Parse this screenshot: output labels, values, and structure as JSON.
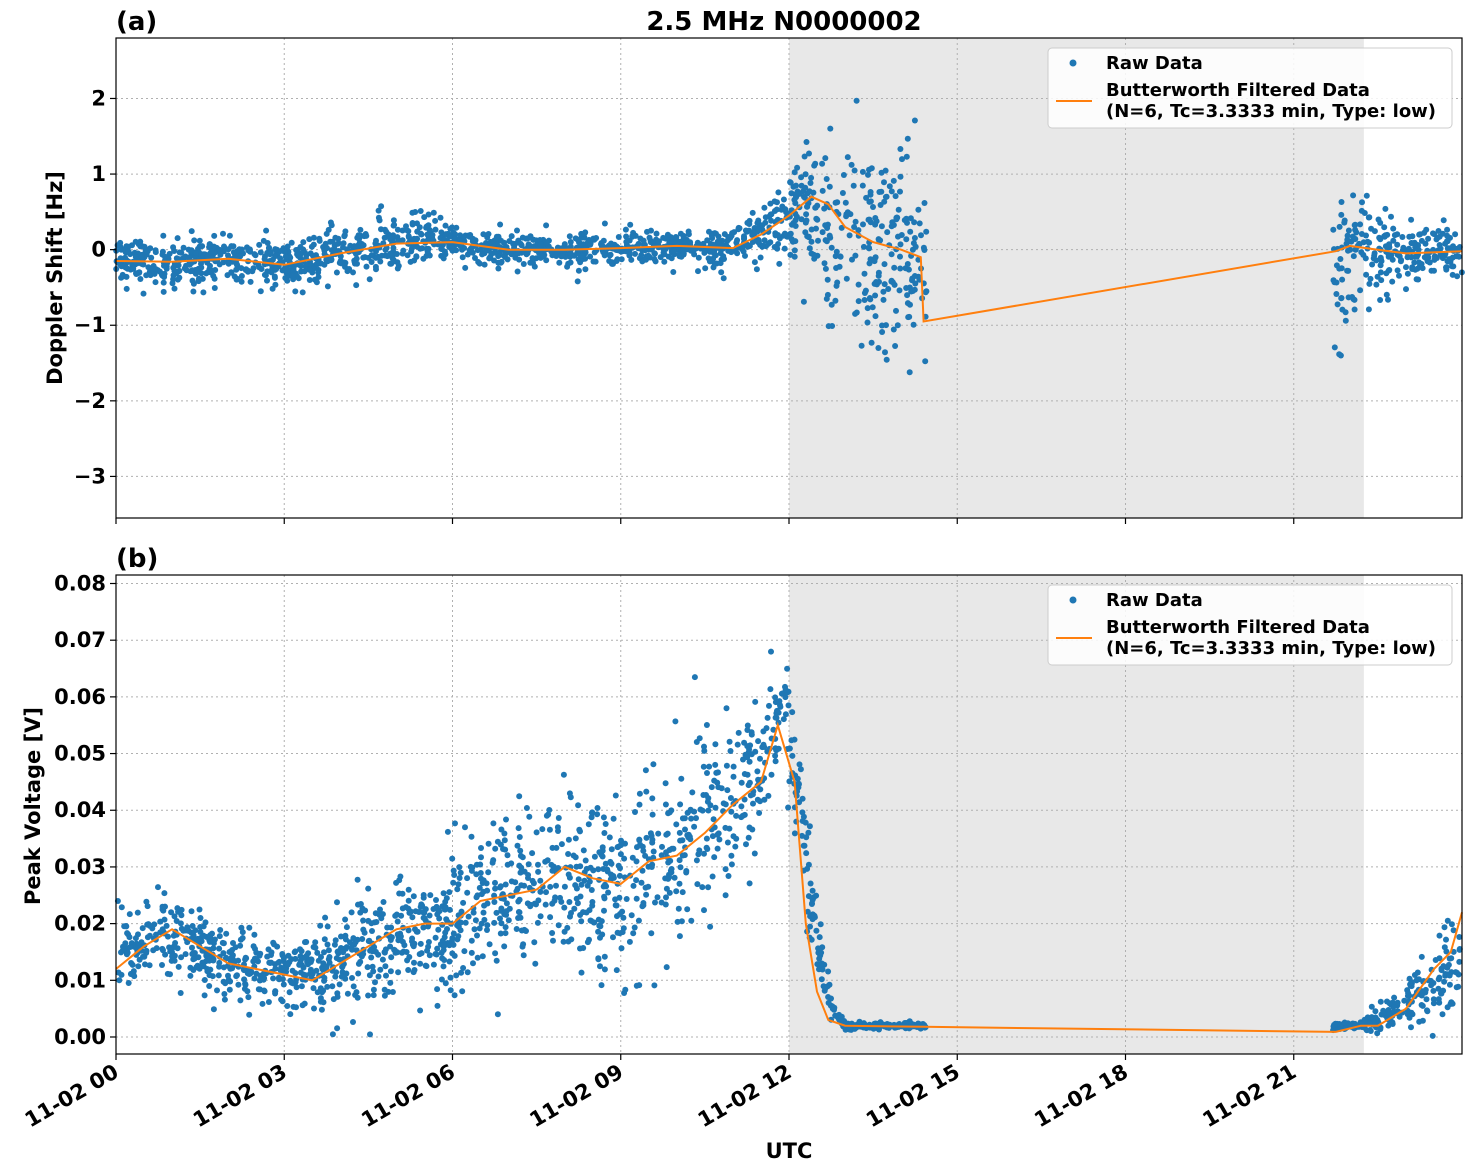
{
  "figure": {
    "title": "2.5 MHz N0000002",
    "xlabel": "UTC"
  },
  "chart_data": [
    {
      "type": "scatter",
      "panel_label": "(a)",
      "title": "2.5 MHz N0000002",
      "ylabel": "Doppler Shift [Hz]",
      "xlabel": "",
      "xlim_hours": [
        0,
        24
      ],
      "ylim": [
        -3.55,
        2.8
      ],
      "yticks": [
        2,
        1,
        0,
        -1,
        -2,
        -3
      ],
      "ytick_labels": [
        "2",
        "1",
        "0",
        "−1",
        "−2",
        "−3"
      ],
      "grid": true,
      "legend_placement": "top-right",
      "shaded_intervals_hours": [
        [
          12,
          22.25
        ]
      ],
      "colors": {
        "raw": "#1f77b4",
        "filtered": "#ff7f0e",
        "shade": "#e8e8e8"
      },
      "series": [
        {
          "name": "Raw Data",
          "kind": "scatter",
          "profile_hours": [
            0,
            1,
            2,
            3,
            4,
            5,
            6,
            7,
            8,
            9,
            10,
            11,
            11.5,
            12,
            12.5,
            13,
            13.5,
            14,
            14.3,
            21.8,
            22,
            22.5,
            23,
            24
          ],
          "center_hz": [
            -0.15,
            -0.18,
            -0.12,
            -0.2,
            -0.05,
            0.08,
            0.12,
            0.0,
            0.0,
            0.02,
            0.05,
            0.02,
            0.2,
            0.45,
            0.6,
            0.2,
            0.1,
            0.0,
            -0.3,
            -0.2,
            0.0,
            0.0,
            -0.05,
            0.0
          ],
          "spread_hz": [
            0.25,
            0.3,
            0.3,
            0.3,
            0.3,
            0.3,
            0.3,
            0.2,
            0.2,
            0.2,
            0.2,
            0.25,
            0.3,
            0.5,
            0.9,
            1.1,
            1.2,
            1.2,
            1.1,
            1.1,
            1.0,
            0.5,
            0.35,
            0.3
          ],
          "gaps_hours": [
            [
              14.45,
              21.7
            ]
          ]
        },
        {
          "name": "Butterworth Filtered Data\n(N=6, Tc=3.3333 min, Type: low)",
          "kind": "line",
          "x_hours": [
            0,
            1,
            2,
            3,
            4,
            5,
            6,
            7,
            8,
            9,
            10,
            11,
            11.5,
            12,
            12.4,
            12.7,
            13,
            13.5,
            14,
            14.35,
            14.4,
            21.75,
            22,
            22.5,
            23,
            24
          ],
          "y_hz": [
            -0.15,
            -0.16,
            -0.12,
            -0.2,
            -0.05,
            0.08,
            0.1,
            0.0,
            0.0,
            0.02,
            0.05,
            0.02,
            0.2,
            0.45,
            0.7,
            0.6,
            0.3,
            0.1,
            0.0,
            -0.1,
            -0.95,
            -0.02,
            0.05,
            0.0,
            -0.05,
            -0.02
          ]
        }
      ],
      "legend": [
        {
          "label": "Raw Data"
        },
        {
          "label_line1": "Butterworth Filtered Data",
          "label_line2": "(N=6, Tc=3.3333 min, Type: low)"
        }
      ]
    },
    {
      "type": "scatter",
      "panel_label": "(b)",
      "title": "",
      "ylabel": "Peak Voltage [V]",
      "xlabel": "UTC",
      "xlim_hours": [
        0,
        24
      ],
      "ylim": [
        -0.003,
        0.0815
      ],
      "yticks": [
        0.08,
        0.07,
        0.06,
        0.05,
        0.04,
        0.03,
        0.02,
        0.01,
        0.0
      ],
      "ytick_labels": [
        "0.08",
        "0.07",
        "0.06",
        "0.05",
        "0.04",
        "0.03",
        "0.02",
        "0.01",
        "0.00"
      ],
      "xticks_hours": [
        0,
        3,
        6,
        9,
        12,
        15,
        18,
        21
      ],
      "xtick_labels": [
        "11-02 00",
        "11-02 03",
        "11-02 06",
        "11-02 09",
        "11-02 12",
        "11-02 15",
        "11-02 18",
        "11-02 21"
      ],
      "grid": true,
      "legend_placement": "top-right",
      "shaded_intervals_hours": [
        [
          12,
          22.25
        ]
      ],
      "series": [
        {
          "name": "Raw Data",
          "kind": "scatter",
          "profile_hours": [
            0,
            1,
            2,
            3,
            4,
            5,
            6,
            7,
            8,
            9,
            10,
            11,
            11.5,
            11.9,
            12.2,
            12.5,
            12.8,
            13,
            14.4,
            21.8,
            22.2,
            22.5,
            23,
            23.5,
            24
          ],
          "center_v": [
            0.015,
            0.018,
            0.013,
            0.011,
            0.013,
            0.018,
            0.02,
            0.026,
            0.028,
            0.027,
            0.032,
            0.04,
            0.05,
            0.058,
            0.04,
            0.015,
            0.004,
            0.002,
            0.002,
            0.002,
            0.002,
            0.003,
            0.006,
            0.01,
            0.015
          ],
          "spread_v": [
            0.006,
            0.006,
            0.006,
            0.005,
            0.007,
            0.009,
            0.011,
            0.012,
            0.013,
            0.013,
            0.014,
            0.014,
            0.013,
            0.012,
            0.009,
            0.006,
            0.002,
            0.0006,
            0.0004,
            0.0005,
            0.0006,
            0.002,
            0.004,
            0.007,
            0.009
          ],
          "gaps_hours": [
            [
              14.45,
              21.7
            ]
          ]
        },
        {
          "name": "Butterworth Filtered Data\n(N=6, Tc=3.3333 min, Type: low)",
          "kind": "line",
          "x_hours": [
            0,
            0.5,
            1,
            1.5,
            2,
            2.5,
            3,
            3.5,
            4,
            4.5,
            5,
            5.5,
            6,
            6.5,
            7,
            7.5,
            8,
            8.5,
            9,
            9.5,
            10,
            10.5,
            11,
            11.5,
            11.8,
            12.1,
            12.3,
            12.5,
            12.7,
            13,
            14.4,
            21.75,
            22.2,
            22.5,
            23,
            23.5,
            23.8,
            24
          ],
          "y_v": [
            0.012,
            0.016,
            0.019,
            0.016,
            0.013,
            0.012,
            0.011,
            0.01,
            0.013,
            0.016,
            0.019,
            0.02,
            0.02,
            0.024,
            0.025,
            0.026,
            0.03,
            0.028,
            0.027,
            0.031,
            0.032,
            0.036,
            0.041,
            0.045,
            0.055,
            0.045,
            0.02,
            0.008,
            0.003,
            0.002,
            0.0018,
            0.0009,
            0.002,
            0.002,
            0.005,
            0.012,
            0.015,
            0.022
          ]
        }
      ],
      "legend": [
        {
          "label": "Raw Data"
        },
        {
          "label_line1": "Butterworth Filtered Data",
          "label_line2": "(N=6, Tc=3.3333 min, Type: low)"
        }
      ]
    }
  ]
}
